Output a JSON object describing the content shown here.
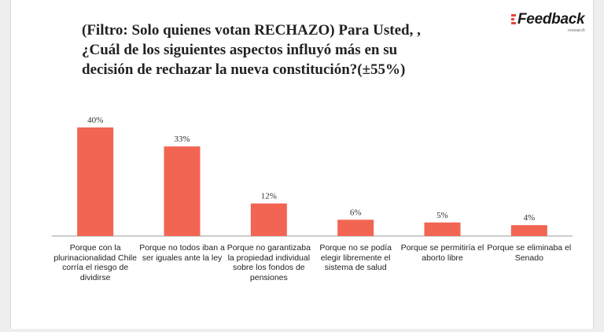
{
  "title_lines": [
    "(Filtro: Solo quienes votan RECHAZO) Para Usted, ,",
    "¿Cuál de los siguientes aspectos influyó más en su",
    "decisión de rechazar la nueva constitución?(±55%)"
  ],
  "logo": {
    "text": "Feedback",
    "sub": "research",
    "accent": "#e8453c"
  },
  "chart_data": {
    "type": "bar",
    "categories": [
      "Porque con la plurinacionalidad Chile corría el riesgo de dividirse",
      "Porque no todos iban a ser iguales ante la ley",
      "Porque no garantizaba la propiedad individual sobre los fondos de pensiones",
      "Porque no se podía elegir libremente el sistema de salud",
      "Porque se permitiría el aborto libre",
      "Porque se eliminaba el Senado"
    ],
    "values": [
      40,
      33,
      12,
      6,
      5,
      4
    ],
    "data_labels": [
      "40%",
      "33%",
      "12%",
      "6%",
      "5%",
      "4%"
    ],
    "ylim": [
      0,
      40
    ],
    "bar_color": "#f26552",
    "grid": false
  }
}
